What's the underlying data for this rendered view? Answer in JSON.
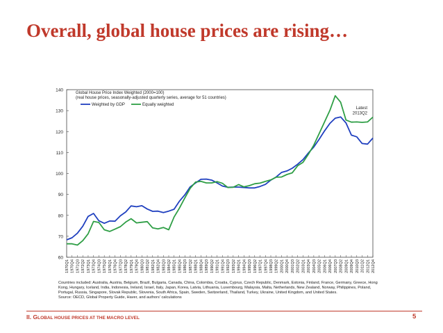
{
  "slide": {
    "title": "Overall, global house prices are rising…",
    "footer": {
      "section_number": "II.",
      "section_initial_1": "G",
      "section_rest_1": "LOBAL HOUSE PRICES AT THE MACRO LEVEL",
      "page_number": "5"
    },
    "accent_color": "#c0392b"
  },
  "chart_data": {
    "type": "line",
    "title": "Global House Price Index Weighted (2000=100)",
    "subtitle": "(real house prices, seasonally-adjusted quarterly series, average for 51 countries)",
    "annotation": [
      "Latest",
      "2013Q2"
    ],
    "x": [
      "1970Q1",
      "1970Q4",
      "1971Q3",
      "1972Q2",
      "1973Q1",
      "1973Q4",
      "1974Q3",
      "1975Q2",
      "1976Q1",
      "1976Q4",
      "1977Q3",
      "1978Q2",
      "1979Q1",
      "1979Q4",
      "1980Q3",
      "1981Q2",
      "1982Q1",
      "1982Q4",
      "1983Q3",
      "1984Q2",
      "1985Q1",
      "1985Q4",
      "1986Q3",
      "1987Q2",
      "1988Q1",
      "1988Q4",
      "1989Q3",
      "1990Q2",
      "1991Q1",
      "1991Q4",
      "1992Q3",
      "1993Q2",
      "1994Q1",
      "1994Q4",
      "1995Q3",
      "1996Q2",
      "1997Q1",
      "1997Q4",
      "1998Q3",
      "1999Q2",
      "2000Q1",
      "2000Q4",
      "2001Q3",
      "2002Q2",
      "2003Q1",
      "2003Q4",
      "2004Q3",
      "2005Q2",
      "2006Q1",
      "2006Q4",
      "2007Q3",
      "2008Q2",
      "2009Q1",
      "2009Q4",
      "2010Q3",
      "2011Q2",
      "2012Q1",
      "2012Q4"
    ],
    "ylim": [
      60,
      140
    ],
    "yticks": [
      60,
      70,
      80,
      90,
      100,
      110,
      120,
      130,
      140
    ],
    "grid": false,
    "legend": "top-left",
    "series": [
      {
        "name": "Weighted by GDP",
        "color": "#1f3fbf",
        "values": [
          68.3,
          69.3,
          71.5,
          74.8,
          79.5,
          80.9,
          77.4,
          76.2,
          77.3,
          77.2,
          79.8,
          81.6,
          84.5,
          84.1,
          84.6,
          83.0,
          81.9,
          82.0,
          81.3,
          82.0,
          82.9,
          86.8,
          89.8,
          93.6,
          95.5,
          97.2,
          97.3,
          96.8,
          95.5,
          94.0,
          93.4,
          93.5,
          93.5,
          93.3,
          93.1,
          93.1,
          93.8,
          94.8,
          96.8,
          98.3,
          100.5,
          101.2,
          102.5,
          104.4,
          106.6,
          109.8,
          112.6,
          116.3,
          120.3,
          123.9,
          126.4,
          127.0,
          124.1,
          118.3,
          117.5,
          114.3,
          114.0,
          116.9
        ]
      },
      {
        "name": "Equally weighted",
        "color": "#2e9e45",
        "values": [
          66.4,
          66.4,
          65.8,
          67.9,
          71.2,
          77.1,
          76.6,
          73.1,
          72.3,
          73.4,
          74.6,
          76.8,
          78.4,
          76.4,
          76.7,
          77.0,
          74.0,
          73.5,
          74.2,
          73.1,
          79.2,
          83.5,
          88.3,
          92.9,
          95.9,
          96.2,
          95.5,
          95.5,
          96.1,
          95.3,
          93.3,
          93.4,
          94.7,
          93.6,
          94.2,
          95.1,
          95.4,
          96.2,
          96.9,
          98.2,
          98.3,
          99.5,
          100.3,
          103.7,
          105.3,
          109.2,
          113.5,
          119.0,
          124.6,
          130.1,
          137.1,
          134.0,
          125.5,
          124.5,
          124.6,
          124.4,
          124.6,
          126.9
        ]
      }
    ],
    "notes": "Countries included: Australia, Austria, Belgium, Brazil, Bulgaria, Canada, China, Colombia, Croatia, Cyprus, Czech Republic, Denmark, Estonia, Finland, France, Germany, Greece, Hong Kong, Hungary, Iceland, India, Indonesia, Ireland, Israel, Italy, Japan, Korea, Latvia, Lithuania, Luxembourg, Malaysia, Malta, Netherlands, New Zealand, Norway, Philippines, Poland, Portugal, Russia, Singapore, Slovak Republic, Slovenia, South Africa, Spain, Sweden, Switzerland, Thailand, Turkey, Ukraine, United Kingdom, and United States.",
    "source": "Source: OECD, Global Property Guide, Haver, and authors' calculations"
  }
}
